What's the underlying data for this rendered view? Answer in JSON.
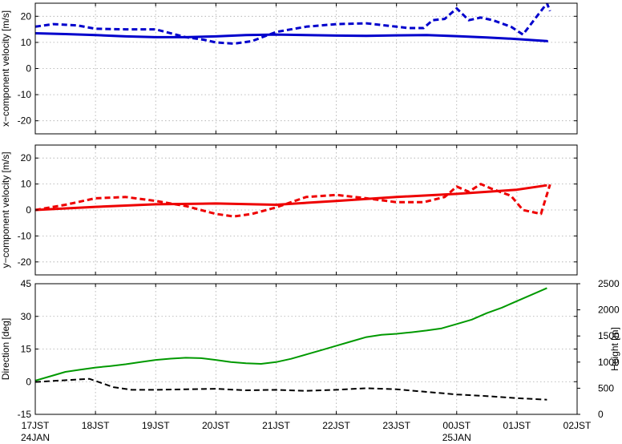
{
  "chart_data": [
    {
      "type": "line",
      "ylabel": "x−component velocity [m/s]",
      "ylim": [
        -25,
        25
      ],
      "yticks": [
        -20,
        -10,
        0,
        10,
        20
      ],
      "x_tick_labels": [
        "17JST",
        "18JST",
        "19JST",
        "20JST",
        "21JST",
        "22JST",
        "23JST",
        "00JST",
        "01JST",
        "02JST"
      ],
      "x_sub_labels": {
        "17JST": "24JAN",
        "00JST": "25JAN"
      },
      "xlim_hours": [
        0,
        9
      ],
      "grid": true,
      "series": [
        {
          "style": "solid",
          "color": "#0000cc",
          "x": [
            0,
            0.5,
            1,
            1.5,
            2,
            2.5,
            3,
            3.5,
            4,
            4.5,
            5,
            5.5,
            6,
            6.5,
            7,
            7.5,
            8,
            8.5,
            8.5
          ],
          "y": [
            13.5,
            13.2,
            12.8,
            12.3,
            12.0,
            12.0,
            12.3,
            12.8,
            13.0,
            12.8,
            12.6,
            12.5,
            12.7,
            12.8,
            12.4,
            11.9,
            11.3,
            10.5,
            10.1
          ]
        },
        {
          "style": "dashed",
          "color": "#0000cc",
          "x": [
            0,
            0.3,
            0.7,
            1.0,
            1.5,
            2.0,
            2.5,
            2.8,
            3.0,
            3.3,
            3.6,
            4.0,
            4.5,
            5.0,
            5.5,
            6.0,
            6.2,
            6.45,
            6.6,
            6.8,
            7.0,
            7.2,
            7.4,
            7.6,
            7.9,
            8.1,
            8.5,
            8.55
          ],
          "y": [
            16.0,
            17.0,
            16.5,
            15.2,
            15.0,
            15.0,
            12.0,
            11.0,
            10.0,
            9.5,
            10.5,
            14.0,
            16.0,
            17.0,
            17.3,
            16.0,
            15.5,
            15.5,
            18.5,
            19.0,
            23.0,
            18.5,
            19.5,
            18.5,
            16.0,
            13.0,
            25.0,
            22.0
          ]
        }
      ]
    },
    {
      "type": "line",
      "ylabel": "y−component velocity [m/s]",
      "ylim": [
        -25,
        25
      ],
      "yticks": [
        -20,
        -10,
        0,
        10,
        20
      ],
      "x_tick_labels": [
        "17JST",
        "18JST",
        "19JST",
        "20JST",
        "21JST",
        "22JST",
        "23JST",
        "00JST",
        "01JST",
        "02JST"
      ],
      "xlim_hours": [
        0,
        9
      ],
      "grid": true,
      "series": [
        {
          "style": "solid",
          "color": "#ee0000",
          "x": [
            0,
            1,
            2,
            3,
            4,
            5,
            6,
            7,
            8,
            8.5
          ],
          "y": [
            0.0,
            1.2,
            2.2,
            2.5,
            2.0,
            3.5,
            5.0,
            6.2,
            7.8,
            9.5
          ]
        },
        {
          "style": "dashed",
          "color": "#ee0000",
          "x": [
            0,
            0.5,
            1.0,
            1.5,
            2.0,
            2.5,
            3.0,
            3.3,
            3.6,
            4.0,
            4.5,
            5.0,
            5.5,
            6.0,
            6.2,
            6.45,
            6.8,
            7.0,
            7.2,
            7.4,
            7.6,
            7.9,
            8.1,
            8.4,
            8.55
          ],
          "y": [
            0.0,
            2.0,
            4.5,
            5.0,
            3.5,
            1.5,
            -1.5,
            -2.5,
            -1.5,
            1.0,
            5.0,
            5.8,
            4.5,
            3.0,
            3.0,
            3.0,
            5.0,
            9.0,
            7.0,
            10.0,
            8.0,
            5.5,
            0.0,
            -1.5,
            9.8
          ]
        }
      ]
    },
    {
      "type": "line",
      "ylabel": "Direction [deg]",
      "y2label": "Height [m]",
      "ylim": [
        -15,
        45
      ],
      "yticks": [
        -15,
        0,
        15,
        30,
        45
      ],
      "y2lim": [
        0,
        2500
      ],
      "y2ticks": [
        0,
        500,
        1000,
        1500,
        2000,
        2500
      ],
      "x_tick_labels": [
        "17JST",
        "18JST",
        "19JST",
        "20JST",
        "21JST",
        "22JST",
        "23JST",
        "00JST",
        "01JST",
        "02JST"
      ],
      "x_sub_labels": {
        "17JST": "24JAN",
        "00JST": "25JAN"
      },
      "xlim_hours": [
        0,
        9
      ],
      "grid": true,
      "series": [
        {
          "style": "solid",
          "color": "#009900",
          "axis": "left",
          "x": [
            0,
            0.25,
            0.5,
            0.75,
            1.0,
            1.25,
            1.5,
            1.75,
            2.0,
            2.25,
            2.5,
            2.75,
            3.0,
            3.25,
            3.5,
            3.75,
            4.0,
            4.25,
            4.5,
            4.75,
            5.0,
            5.25,
            5.5,
            5.75,
            6.0,
            6.25,
            6.5,
            6.75,
            7.0,
            7.25,
            7.5,
            7.75,
            8.0,
            8.25,
            8.5
          ],
          "y": [
            0.5,
            2.5,
            4.5,
            5.5,
            6.5,
            7.2,
            8.0,
            9.0,
            10.0,
            10.6,
            11.0,
            10.8,
            10.0,
            9.0,
            8.5,
            8.2,
            9.0,
            10.5,
            12.5,
            14.5,
            16.5,
            18.5,
            20.5,
            21.5,
            22.0,
            22.7,
            23.5,
            24.5,
            26.5,
            28.5,
            31.5,
            34.0,
            37.0,
            40.0,
            43.0
          ]
        },
        {
          "style": "dashed",
          "color": "#000000",
          "axis": "right",
          "x": [
            0,
            0.3,
            0.6,
            0.9,
            1.0,
            1.3,
            1.6,
            2.0,
            2.5,
            3.0,
            3.5,
            4.0,
            4.5,
            5.0,
            5.5,
            6.0,
            6.5,
            7.0,
            7.5,
            8.0,
            8.5
          ],
          "y": [
            620,
            640,
            660,
            680,
            640,
            520,
            470,
            470,
            480,
            490,
            460,
            470,
            450,
            470,
            500,
            480,
            430,
            380,
            350,
            310,
            280
          ]
        }
      ]
    }
  ]
}
